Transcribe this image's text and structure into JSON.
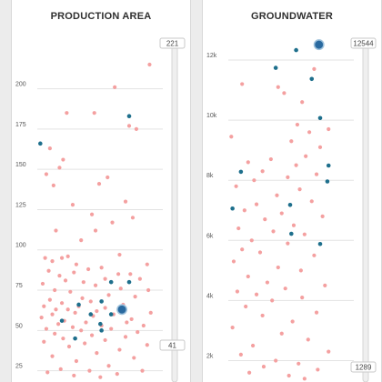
{
  "colors": {
    "point": "#f4a0a0",
    "highlight": "#1e6f8c",
    "selected": "#2a6aa0"
  },
  "chart_data": [
    {
      "type": "scatter",
      "title": "PRODUCTION AREA",
      "ylim": [
        18,
        228
      ],
      "y_ticks": [
        25,
        50,
        75,
        100,
        125,
        150,
        175,
        200
      ],
      "y_tick_labels": [
        "25",
        "50",
        "75",
        "100",
        "125",
        "150",
        "175",
        "200"
      ],
      "slider": {
        "max": "221",
        "min": "41"
      },
      "series": [
        {
          "y": [
            215,
            201,
            185,
            185,
            177,
            175,
            163,
            156,
            151,
            147,
            145,
            141,
            140,
            130,
            128,
            122,
            120,
            117,
            112,
            112,
            106,
            97,
            96,
            95,
            95,
            93,
            91,
            91,
            89,
            88,
            87,
            86,
            85,
            85,
            84,
            82,
            82,
            81,
            80,
            79,
            78,
            76,
            75,
            75,
            74,
            72,
            71,
            70,
            69,
            68,
            67,
            66,
            65,
            65,
            64,
            63,
            63,
            62,
            61,
            61,
            60,
            60,
            59,
            58,
            57,
            56,
            55,
            55,
            54,
            53,
            53,
            52,
            51,
            51,
            50,
            49,
            48,
            47,
            46,
            45,
            44,
            43,
            42,
            41,
            40,
            38,
            36,
            34,
            33,
            31,
            28,
            26,
            25,
            25,
            24,
            23,
            22,
            21
          ],
          "x": [
            0.92,
            0.63,
            0.23,
            0.46,
            0.75,
            0.81,
            0.09,
            0.2,
            0.17,
            0.06,
            0.57,
            0.5,
            0.12,
            0.72,
            0.28,
            0.44,
            0.78,
            0.61,
            0.14,
            0.47,
            0.35,
            0.67,
            0.24,
            0.19,
            0.05,
            0.11,
            0.31,
            0.9,
            0.52,
            0.41,
            0.08,
            0.29,
            0.66,
            0.76,
            0.17,
            0.55,
            0.84,
            0.22,
            0.37,
            0.03,
            0.47,
            0.68,
            0.13,
            0.91,
            0.26,
            0.58,
            0.8,
            0.36,
            0.09,
            0.43,
            0.19,
            0.7,
            0.04,
            0.33,
            0.55,
            0.24,
            0.14,
            0.48,
            0.93,
            0.3,
            0.11,
            0.62,
            0.45,
            0.02,
            0.77,
            0.21,
            0.39,
            0.73,
            0.16,
            0.52,
            0.87,
            0.28,
            0.06,
            0.6,
            0.35,
            0.82,
            0.13,
            0.44,
            0.72,
            0.2,
            0.55,
            0.04,
            0.38,
            0.9,
            0.25,
            0.67,
            0.48,
            0.11,
            0.79,
            0.31,
            0.58,
            0.18,
            0.86,
            0.42,
            0.07,
            0.65,
            0.29,
            0.51
          ]
        },
        {
          "highlight": true,
          "y": [
            183,
            166,
            80,
            80,
            68,
            66,
            60,
            60,
            56,
            54,
            50,
            45
          ],
          "x": [
            0.75,
            0.01,
            0.6,
            0.75,
            0.52,
            0.33,
            0.6,
            0.43,
            0.19,
            0.51,
            0.52,
            0.3
          ]
        },
        {
          "selected": true,
          "y": [
            63
          ],
          "x": [
            0.69
          ]
        }
      ]
    },
    {
      "type": "scatter",
      "title": "GROUNDWATER",
      "ylim": [
        1289,
        12544
      ],
      "y_ticks": [
        2000,
        4000,
        6000,
        8000,
        10000,
        12000
      ],
      "y_tick_labels": [
        "2k",
        "4k",
        "6k",
        "8k",
        "10k",
        "12k"
      ],
      "slider": {
        "max": "12544",
        "min": "1289"
      },
      "series": [
        {
          "y": [
            11700,
            11200,
            11100,
            10900,
            10600,
            9850,
            9700,
            9600,
            9450,
            9300,
            9100,
            8800,
            8700,
            8600,
            8500,
            8300,
            8200,
            8100,
            8000,
            7800,
            7700,
            7500,
            7300,
            7200,
            7000,
            6900,
            6800,
            6700,
            6500,
            6400,
            6300,
            6200,
            6000,
            5900,
            5700,
            5600,
            5500,
            5300,
            5100,
            5000,
            4800,
            4600,
            4500,
            4400,
            4300,
            4200,
            4100,
            4000,
            3800,
            3600,
            3500,
            3300,
            3100,
            2900,
            2700,
            2500,
            2300,
            2200,
            2000,
            1900,
            1800,
            1700,
            1600,
            1500,
            1400
          ],
          "x": [
            0.7,
            0.1,
            0.4,
            0.45,
            0.6,
            0.56,
            0.82,
            0.66,
            0.01,
            0.51,
            0.75,
            0.63,
            0.34,
            0.15,
            0.55,
            0.27,
            0.72,
            0.48,
            0.2,
            0.05,
            0.58,
            0.39,
            0.68,
            0.22,
            0.12,
            0.43,
            0.77,
            0.29,
            0.53,
            0.07,
            0.36,
            0.62,
            0.18,
            0.48,
            0.1,
            0.25,
            0.7,
            0.03,
            0.4,
            0.59,
            0.15,
            0.31,
            0.79,
            0.46,
            0.06,
            0.22,
            0.6,
            0.35,
            0.13,
            0.72,
            0.27,
            0.52,
            0.02,
            0.43,
            0.65,
            0.19,
            0.82,
            0.09,
            0.38,
            0.57,
            0.28,
            0.73,
            0.16,
            0.49,
            0.62
          ]
        },
        {
          "highlight": true,
          "y": [
            12330,
            11740,
            11370,
            10070,
            8490,
            8280,
            7960,
            7180,
            7060,
            6220,
            5880
          ],
          "x": [
            0.55,
            0.38,
            0.68,
            0.75,
            0.82,
            0.09,
            0.81,
            0.5,
            0.02,
            0.51,
            0.75
          ]
        },
        {
          "selected": true,
          "y": [
            12510
          ],
          "x": [
            0.74
          ]
        }
      ]
    }
  ]
}
